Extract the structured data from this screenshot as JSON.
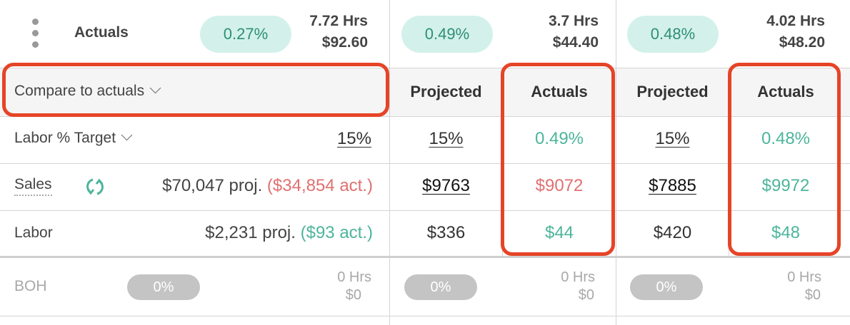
{
  "top_row": {
    "label": "Actuals",
    "summary": {
      "pct": "0.27%",
      "hours": "7.72 Hrs",
      "amount": "$92.60"
    },
    "day_a": {
      "pct": "0.49%",
      "hours": "3.7 Hrs",
      "amount": "$44.40"
    },
    "day_b": {
      "pct": "0.48%",
      "hours": "4.02 Hrs",
      "amount": "$48.20"
    }
  },
  "compare": {
    "label": "Compare to actuals"
  },
  "columns": {
    "day_a": {
      "projected": "Projected",
      "actuals": "Actuals"
    },
    "day_b": {
      "projected": "Projected",
      "actuals": "Actuals"
    }
  },
  "rows": {
    "labor_target": {
      "label": "Labor % Target",
      "summary": "15%",
      "day_a": {
        "projected": "15%",
        "actuals": "0.49%"
      },
      "day_b": {
        "projected": "15%",
        "actuals": "0.48%"
      }
    },
    "sales": {
      "label": "Sales",
      "proj": "$70,047 proj.",
      "act": "($34,854 act.)",
      "day_a": {
        "projected": "$9763",
        "actuals": "$9072"
      },
      "day_b": {
        "projected": "$7885",
        "actuals": "$9972"
      }
    },
    "labor": {
      "label": "Labor",
      "proj": "$2,231 proj.",
      "act": "($93 act.)",
      "day_a": {
        "projected": "$336",
        "actuals": "$44"
      },
      "day_b": {
        "projected": "$420",
        "actuals": "$48"
      }
    },
    "boh": {
      "label": "BOH",
      "summary": {
        "pct": "0%",
        "hours": "0 Hrs",
        "amount": "$0"
      },
      "day_a": {
        "pct": "0%",
        "hours": "0 Hrs",
        "amount": "$0"
      },
      "day_b": {
        "pct": "0%",
        "hours": "0 Hrs",
        "amount": "$0"
      }
    }
  },
  "colors": {
    "highlight": "#e64427",
    "teal": "#4db59b",
    "red": "#e07070",
    "pill": "#d3f1ea"
  }
}
